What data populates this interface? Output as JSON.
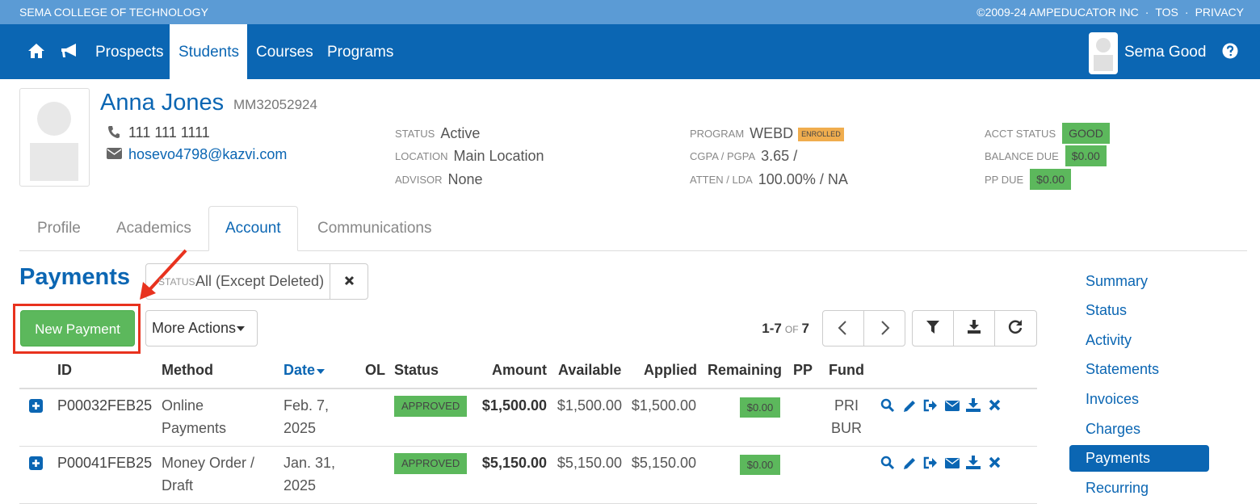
{
  "topbar": {
    "school": "SEMA COLLEGE OF TECHNOLOGY",
    "copyright": "©2009-24 AMPEDUCATOR INC",
    "separator": "·",
    "links": [
      "TOS",
      "PRIVACY"
    ]
  },
  "nav": {
    "items": [
      "Prospects",
      "Students",
      "Courses",
      "Programs"
    ],
    "active": 1,
    "user": "Sema Good"
  },
  "student": {
    "name": "Anna Jones",
    "id": "MM32052924",
    "phone": "111 111 1111",
    "email": "hosevo4798@kazvi.com"
  },
  "info": [
    [
      {
        "label": "STATUS",
        "value": "Active"
      },
      {
        "label": "LOCATION",
        "value": "Main Location"
      },
      {
        "label": "ADVISOR",
        "value": "None"
      }
    ],
    [
      {
        "label": "PROGRAM",
        "value": "WEBD",
        "badge": "ENROLLED"
      },
      {
        "label": "CGPA / PGPA",
        "value": "3.65 /"
      },
      {
        "label": "ATTEN / LDA",
        "value": "100.00% / NA"
      }
    ],
    [
      {
        "label": "ACCT STATUS",
        "badge": "GOOD"
      },
      {
        "label": "BALANCE DUE",
        "badge": "$0.00"
      },
      {
        "label": "PP DUE",
        "badge": "$0.00"
      }
    ]
  ],
  "tabs": {
    "items": [
      "Profile",
      "Academics",
      "Account",
      "Communications"
    ],
    "active": 2
  },
  "payments": {
    "title": "Payments",
    "filter_label": "STATUS",
    "filter_value": "All (Except Deleted)",
    "new_button": "New Payment",
    "more_actions": "More Actions",
    "pager": {
      "range": "1-7",
      "of": "OF",
      "total": "7"
    }
  },
  "table": {
    "columns": [
      "ID",
      "Method",
      "Date",
      "OL",
      "Status",
      "Amount",
      "Available",
      "Applied",
      "Remaining",
      "PP",
      "Fund"
    ],
    "sorted": 2,
    "rows": [
      {
        "id": "P00032FEB25",
        "method": "Online Payments",
        "date": "Feb. 7, 2025",
        "status": "APPROVED",
        "amount": "$1,500.00",
        "available": "$1,500.00",
        "applied": "$1,500.00",
        "remaining": "$0.00",
        "fund": "PRI BUR"
      },
      {
        "id": "P00041FEB25",
        "method": "Money Order / Draft",
        "date": "Jan. 31, 2025",
        "status": "APPROVED",
        "amount": "$5,150.00",
        "available": "$5,150.00",
        "applied": "$5,150.00",
        "remaining": "$0.00"
      }
    ]
  },
  "sidebar": {
    "items": [
      "Summary",
      "Status",
      "Activity",
      "Statements",
      "Invoices",
      "Charges",
      "Payments",
      "Recurring"
    ],
    "active": 6
  }
}
